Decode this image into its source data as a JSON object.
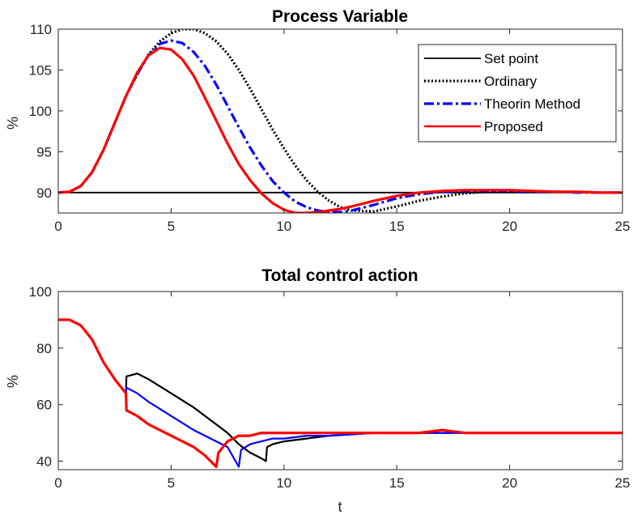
{
  "chart_data": [
    {
      "type": "line",
      "title": "Process Variable",
      "xlabel": "",
      "ylabel": "%",
      "xlim": [
        0,
        25
      ],
      "ylim": [
        87.5,
        110
      ],
      "xticks": [
        0,
        5,
        10,
        15,
        20,
        25
      ],
      "yticks": [
        90,
        95,
        100,
        105,
        110
      ],
      "grid": false,
      "legend": "top-right",
      "series": [
        {
          "name": "Set point",
          "color": "#000000",
          "style": "solid",
          "x": [
            0,
            25
          ],
          "y": [
            90,
            90
          ]
        },
        {
          "name": "Ordinary",
          "color": "#000000",
          "style": "dotted",
          "x": [
            0,
            0.5,
            1,
            1.5,
            2,
            2.5,
            3,
            3.5,
            4,
            4.5,
            5,
            5.5,
            6,
            6.5,
            7,
            7.5,
            8,
            8.5,
            9,
            9.5,
            10,
            10.5,
            11,
            11.5,
            12,
            12.5,
            13,
            14,
            15,
            16,
            17,
            18,
            19,
            20,
            21,
            22,
            23,
            24,
            25
          ],
          "y": [
            90,
            90.1,
            90.8,
            92.5,
            95.2,
            98.5,
            101.8,
            104.5,
            106.9,
            108.5,
            109.5,
            110,
            110,
            109.5,
            108.5,
            107,
            105,
            102.7,
            100.2,
            97.7,
            95.4,
            93.3,
            91.5,
            90.1,
            89,
            88.2,
            87.8,
            87.7,
            88.3,
            89,
            89.5,
            89.9,
            90.1,
            90.2,
            90.2,
            90.1,
            90.1,
            90,
            90
          ]
        },
        {
          "name": "Theorin Method",
          "color": "#0000ff",
          "style": "dashdot",
          "x": [
            0,
            0.5,
            1,
            1.5,
            2,
            2.5,
            3,
            3.5,
            4,
            4.5,
            5,
            5.5,
            6,
            6.5,
            7,
            7.5,
            8,
            8.5,
            9,
            9.5,
            10,
            10.5,
            11,
            11.5,
            12,
            12.5,
            13,
            14,
            15,
            16,
            17,
            18,
            19,
            20,
            21,
            22,
            23,
            24,
            25
          ],
          "y": [
            90,
            90.1,
            90.8,
            92.5,
            95.2,
            98.5,
            101.8,
            104.5,
            106.8,
            108.2,
            108.6,
            108.3,
            107.2,
            105.5,
            103.2,
            100.6,
            98,
            95.5,
            93.3,
            91.4,
            90,
            88.9,
            88.2,
            87.8,
            87.6,
            87.6,
            87.8,
            88.5,
            89.3,
            89.8,
            90.1,
            90.2,
            90.2,
            90.2,
            90.1,
            90.1,
            90,
            90,
            90
          ]
        },
        {
          "name": "Proposed",
          "color": "#ff0000",
          "style": "solid",
          "x": [
            0,
            0.5,
            1,
            1.5,
            2,
            2.5,
            3,
            3.5,
            4,
            4.5,
            5,
            5.5,
            6,
            6.5,
            7,
            7.5,
            8,
            8.5,
            9,
            9.5,
            10,
            10.5,
            11,
            11.5,
            12,
            12.5,
            13,
            14,
            15,
            16,
            17,
            18,
            19,
            20,
            21,
            22,
            23,
            24,
            25
          ],
          "y": [
            90,
            90.1,
            90.8,
            92.5,
            95.2,
            98.5,
            101.8,
            104.7,
            106.8,
            107.7,
            107.5,
            106.3,
            104.3,
            101.6,
            98.8,
            96,
            93.5,
            91.5,
            89.9,
            88.7,
            87.9,
            87.5,
            87.5,
            87.6,
            87.8,
            88,
            88.3,
            89,
            89.6,
            90,
            90.2,
            90.3,
            90.3,
            90.3,
            90.2,
            90.1,
            90.1,
            90,
            90
          ]
        }
      ]
    },
    {
      "type": "line",
      "title": "Total control action",
      "xlabel": "t",
      "ylabel": "%",
      "xlim": [
        0,
        25
      ],
      "ylim": [
        37,
        100
      ],
      "xticks": [
        0,
        5,
        10,
        15,
        20,
        25
      ],
      "yticks": [
        40,
        60,
        80,
        100
      ],
      "grid": false,
      "legend": "none",
      "series": [
        {
          "name": "Ordinary",
          "color": "#000000",
          "style": "solid",
          "x": [
            0,
            0.5,
            1,
            1.5,
            2,
            2.5,
            3,
            3.02,
            3.5,
            4,
            5,
            6,
            7,
            7.5,
            8,
            8.5,
            9,
            9.2,
            9.25,
            9.5,
            10,
            11,
            12,
            14,
            16,
            18,
            20,
            22,
            25
          ],
          "y": [
            90,
            90,
            88,
            83,
            75,
            69,
            64,
            70,
            71,
            69,
            64,
            59,
            53,
            50,
            46,
            43,
            41,
            40,
            45,
            46,
            47,
            48,
            49,
            50,
            50,
            50,
            50,
            50,
            50
          ]
        },
        {
          "name": "Theorin Method",
          "color": "#0000ff",
          "style": "solid",
          "x": [
            0,
            0.5,
            1,
            1.5,
            2,
            2.5,
            3,
            3.02,
            3.5,
            4,
            5,
            6,
            7,
            7.5,
            8,
            8.1,
            8.5,
            9,
            9.5,
            10,
            11,
            12,
            14,
            16,
            18,
            20,
            22,
            25
          ],
          "y": [
            90,
            90,
            88,
            83,
            75,
            69,
            64,
            66,
            64,
            61,
            56,
            51,
            47,
            45,
            38,
            44,
            46,
            47,
            48,
            48,
            49,
            49,
            50,
            50,
            50,
            50,
            50,
            50
          ]
        },
        {
          "name": "Proposed",
          "color": "#ff0000",
          "style": "solid",
          "x": [
            0,
            0.5,
            1,
            1.5,
            2,
            2.5,
            3,
            3.02,
            3.5,
            4,
            5,
            6,
            6.5,
            7,
            7.1,
            7.5,
            8,
            8.5,
            9,
            10,
            11,
            12,
            14,
            16,
            17,
            18,
            20,
            22,
            25
          ],
          "y": [
            90,
            90,
            88,
            83,
            75,
            69,
            64,
            58,
            56,
            53,
            49,
            45,
            42,
            38,
            43,
            47,
            49,
            49,
            50,
            50,
            50,
            50,
            50,
            50,
            51,
            50,
            50,
            50,
            50
          ]
        }
      ]
    }
  ]
}
